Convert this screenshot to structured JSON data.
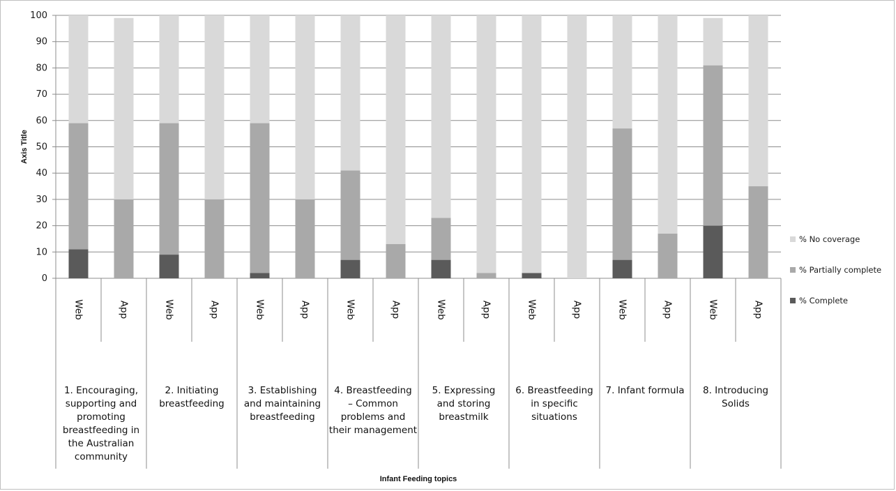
{
  "chart_data": {
    "type": "bar",
    "stacked": true,
    "xlabel": "Infant Feeding topics",
    "ylabel": "Axis Title",
    "ylim": [
      0,
      100
    ],
    "yticks": [
      0,
      10,
      20,
      30,
      40,
      50,
      60,
      70,
      80,
      90,
      100
    ],
    "grid": true,
    "legend_position": "right",
    "categories": [
      "Web",
      "App",
      "Web",
      "App",
      "Web",
      "App",
      "Web",
      "App",
      "Web",
      "App",
      "Web",
      "App",
      "Web",
      "App",
      "Web",
      "App"
    ],
    "groups": [
      {
        "label": [
          "1.    Encouraging,",
          "supporting and",
          "promoting",
          "breastfeeding in",
          "the Australian",
          "community"
        ]
      },
      {
        "label": [
          "2.    Initiating",
          "breastfeeding"
        ]
      },
      {
        "label": [
          "3.    Establishing",
          "and maintaining",
          "breastfeeding"
        ]
      },
      {
        "label": [
          "4.    Breastfeeding",
          "– Common",
          "problems and",
          "their management"
        ]
      },
      {
        "label": [
          "5.    Expressing",
          "and storing",
          "breastmilk"
        ]
      },
      {
        "label": [
          "6.    Breastfeeding",
          "in specific",
          "situations"
        ]
      },
      {
        "label": [
          "7.    Infant formula"
        ]
      },
      {
        "label": [
          "8.    Introducing",
          "Solids"
        ]
      }
    ],
    "series": [
      {
        "name": "% Complete",
        "color": "#5a5a5a",
        "values": [
          11,
          0,
          9,
          0,
          2,
          0,
          7,
          0,
          7,
          0,
          2,
          0,
          7,
          0,
          20,
          0
        ]
      },
      {
        "name": "% Partially complete",
        "color": "#a9a9a9",
        "values": [
          48,
          30,
          50,
          30,
          57,
          30,
          34,
          13,
          16,
          2,
          0,
          0,
          50,
          17,
          61,
          35
        ]
      },
      {
        "name": "% No coverage",
        "color": "#d9d9d9",
        "values": [
          41,
          69,
          41,
          70,
          41,
          70,
          59,
          87,
          77,
          98,
          98,
          100,
          43,
          83,
          18,
          65
        ]
      }
    ]
  }
}
